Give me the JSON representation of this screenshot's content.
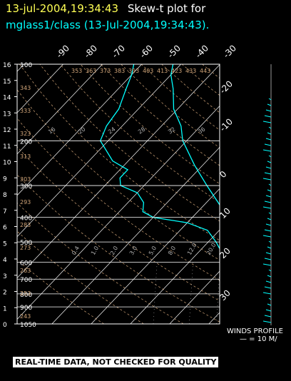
{
  "title": {
    "date": "13-jul-2004,19:34:43",
    "label": "Skew-t plot for",
    "subtitle": "mglass1/class (13-Jul-2004,19:34:43)."
  },
  "disclaimer": "REAL-TIME DATA, NOT CHECKED FOR QUALITY",
  "winds_profile": {
    "label": "WINDS PROFILE",
    "scale": "— = 10 M/"
  },
  "colors": {
    "background": "#000000",
    "title_date": "#ffff55",
    "title_label": "#ffffff",
    "sounding": "#00ffff",
    "grid": "#ffffff",
    "dry_adiabat": "#d2a679",
    "moist_adiabat": "#b0b0b0",
    "mixing_ratio": "#b0b0b0"
  },
  "chart_data": {
    "type": "line",
    "chart_kind": "skew-t log-p",
    "title": "Skew-t plot for mglass1/class (13-Jul-2004,19:34:43).",
    "y_axis": {
      "quantity": "pressure (hPa)",
      "scale": "log",
      "range": [
        100,
        1050
      ],
      "tick_labels": [
        "100",
        "200",
        "300",
        "400",
        "500",
        "600",
        "700",
        "800",
        "900",
        "1050"
      ]
    },
    "left_height_ticks": [
      "0",
      "1",
      "2",
      "3",
      "4",
      "5",
      "6",
      "7",
      "8",
      "9",
      "10",
      "11",
      "12",
      "13",
      "14",
      "15",
      "16"
    ],
    "top_temperature_labels": [
      "-90",
      "-80",
      "-70",
      "-60",
      "-50",
      "-40",
      "-30"
    ],
    "right_temperature_labels": [
      "-20",
      "-10",
      "0",
      "10",
      "20",
      "30"
    ],
    "dry_adiabat_labels": [
      "243",
      "253",
      "263",
      "273",
      "283",
      "293",
      "303",
      "313",
      "323",
      "333",
      "343",
      "353",
      "363",
      "373",
      "383",
      "393",
      "403",
      "413",
      "423",
      "433",
      "443"
    ],
    "moist_adiabat_labels": [
      "16",
      "20",
      "24",
      "28",
      "32",
      "36"
    ],
    "mixing_ratio_labels": [
      "0.4",
      "1.0",
      "2.0",
      "3.0",
      "5.0",
      "8.0",
      "12.0",
      "20.0"
    ],
    "series": [
      {
        "role": "temperature",
        "color": "#00ffff",
        "points": [
          {
            "p": 1000,
            "t": 31
          },
          {
            "p": 980,
            "t": 29
          },
          {
            "p": 950,
            "t": 26
          },
          {
            "p": 925,
            "t": 24
          },
          {
            "p": 900,
            "t": 22
          },
          {
            "p": 850,
            "t": 18
          },
          {
            "p": 800,
            "t": 14
          },
          {
            "p": 750,
            "t": 10
          },
          {
            "p": 700,
            "t": 6
          },
          {
            "p": 650,
            "t": 2
          },
          {
            "p": 600,
            "t": -2
          },
          {
            "p": 550,
            "t": -6
          },
          {
            "p": 500,
            "t": -10
          },
          {
            "p": 450,
            "t": -15
          },
          {
            "p": 400,
            "t": -21
          },
          {
            "p": 350,
            "t": -27
          },
          {
            "p": 300,
            "t": -34
          },
          {
            "p": 250,
            "t": -42
          },
          {
            "p": 200,
            "t": -51
          },
          {
            "p": 175,
            "t": -55
          },
          {
            "p": 150,
            "t": -61
          },
          {
            "p": 125,
            "t": -66
          },
          {
            "p": 110,
            "t": -70
          },
          {
            "p": 100,
            "t": -72
          }
        ]
      },
      {
        "role": "dewpoint",
        "color": "#00ffff",
        "points": [
          {
            "p": 1000,
            "t": 22
          },
          {
            "p": 980,
            "t": 21
          },
          {
            "p": 950,
            "t": 19
          },
          {
            "p": 925,
            "t": 18
          },
          {
            "p": 900,
            "t": 16
          },
          {
            "p": 850,
            "t": 13
          },
          {
            "p": 800,
            "t": 9
          },
          {
            "p": 750,
            "t": 5
          },
          {
            "p": 700,
            "t": 1
          },
          {
            "p": 650,
            "t": -4
          },
          {
            "p": 600,
            "t": -9
          },
          {
            "p": 550,
            "t": -14
          },
          {
            "p": 500,
            "t": -18
          },
          {
            "p": 450,
            "t": -23
          },
          {
            "p": 420,
            "t": -30
          },
          {
            "p": 400,
            "t": -40
          },
          {
            "p": 380,
            "t": -44
          },
          {
            "p": 350,
            "t": -46
          },
          {
            "p": 320,
            "t": -50
          },
          {
            "p": 300,
            "t": -56
          },
          {
            "p": 280,
            "t": -58
          },
          {
            "p": 260,
            "t": -58
          },
          {
            "p": 240,
            "t": -64
          },
          {
            "p": 200,
            "t": -72
          },
          {
            "p": 175,
            "t": -74
          },
          {
            "p": 150,
            "t": -75
          },
          {
            "p": 125,
            "t": -78
          },
          {
            "p": 110,
            "t": -80
          },
          {
            "p": 100,
            "t": -82
          }
        ]
      }
    ]
  }
}
